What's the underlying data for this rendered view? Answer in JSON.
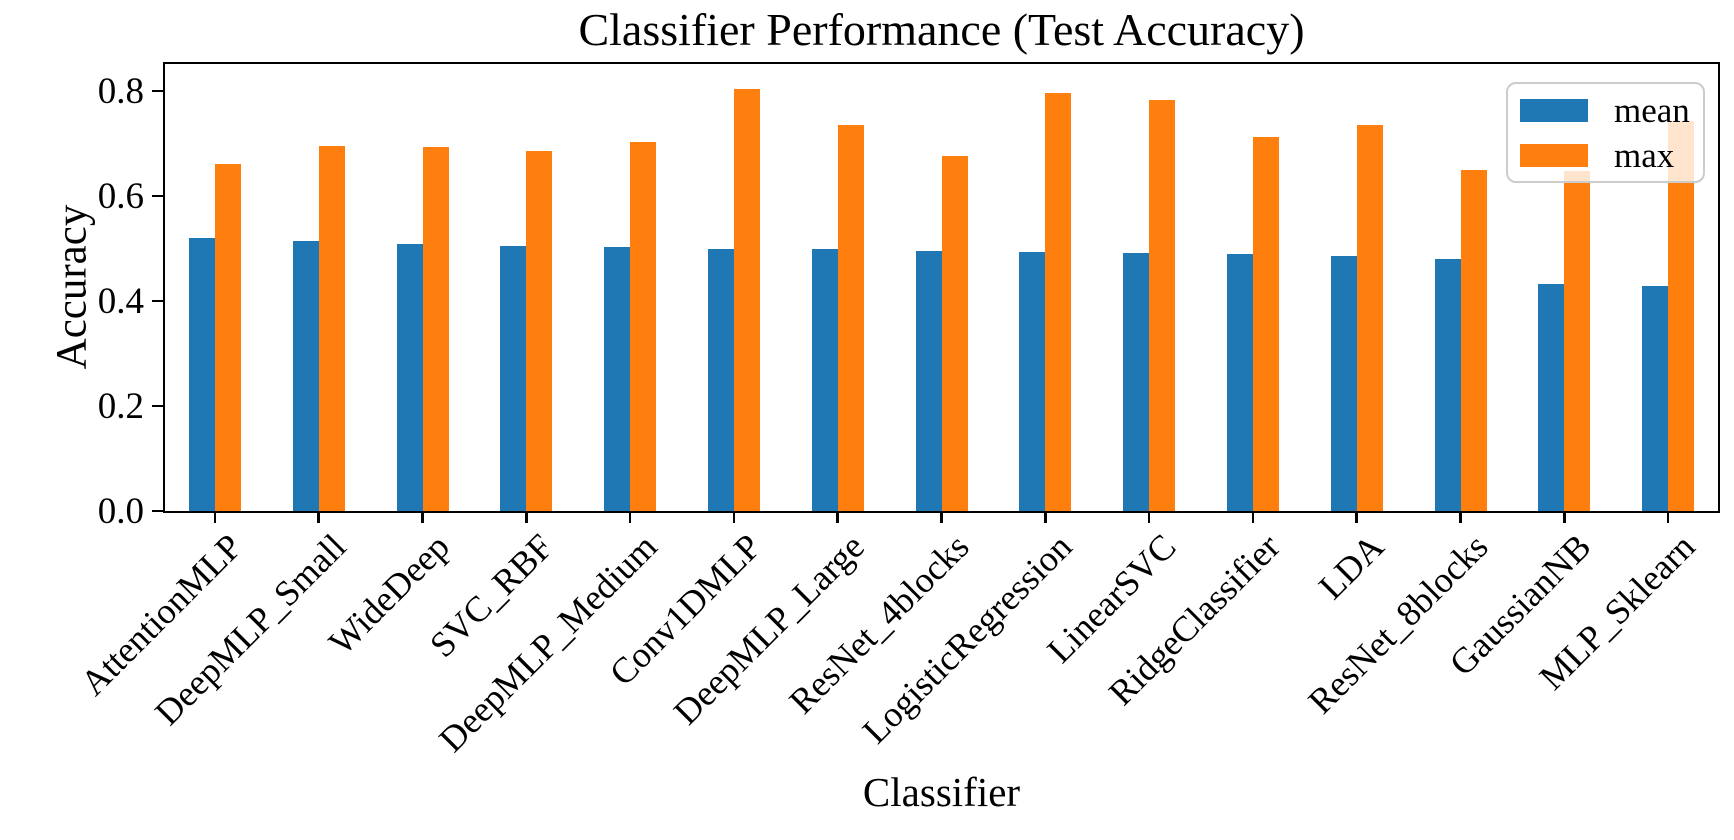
{
  "chart_data": {
    "type": "bar",
    "title": "Classifier Performance (Test Accuracy)",
    "xlabel": "Classifier",
    "ylabel": "Accuracy",
    "categories": [
      "AttentionMLP",
      "DeepMLP_Small",
      "WideDeep",
      "SVC_RBF",
      "DeepMLP_Medium",
      "Conv1DMLP",
      "DeepMLP_Large",
      "ResNet_4blocks",
      "LogisticRegression",
      "LinearSVC",
      "RidgeClassifier",
      "LDA",
      "ResNet_8blocks",
      "GaussianNB",
      "MLP_Sklearn"
    ],
    "series": [
      {
        "name": "mean",
        "color": "#1f77b4",
        "values": [
          0.52,
          0.514,
          0.509,
          0.504,
          0.503,
          0.5,
          0.499,
          0.495,
          0.494,
          0.492,
          0.489,
          0.485,
          0.48,
          0.432,
          0.428
        ]
      },
      {
        "name": "max",
        "color": "#ff7f0e",
        "values": [
          0.661,
          0.696,
          0.693,
          0.686,
          0.703,
          0.803,
          0.736,
          0.677,
          0.797,
          0.783,
          0.713,
          0.735,
          0.65,
          0.648,
          0.743
        ]
      }
    ],
    "yticks": [
      "0.0",
      "0.2",
      "0.4",
      "0.6",
      "0.8"
    ],
    "ylim": [
      0.0,
      0.86
    ],
    "grid": false,
    "legend_position": "upper right",
    "bar_orientation": "vertical",
    "x_tick_rotation_deg": 45
  }
}
